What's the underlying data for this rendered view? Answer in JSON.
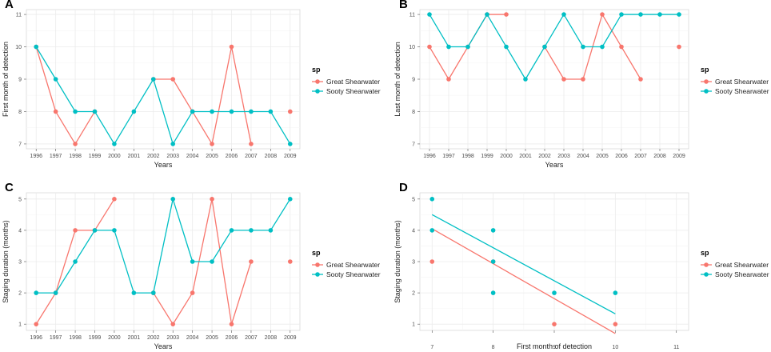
{
  "colors": {
    "great": "#F8766D",
    "sooty": "#00BFC4",
    "grid": "#ebebeb",
    "border": "#d9d9d9"
  },
  "legend": {
    "title": "sp",
    "entries": [
      "Great Shearwater",
      "Sooty Shearwater"
    ]
  },
  "chart_data": [
    {
      "panel": "A",
      "type": "line",
      "xlabel": "Years",
      "ylabel": "First month of detection",
      "categories": [
        "1996",
        "1997",
        "1998",
        "1999",
        "2000",
        "2001",
        "2002",
        "2003",
        "2004",
        "2005",
        "2006",
        "2007",
        "2008",
        "2009"
      ],
      "yticks": [
        7,
        8,
        9,
        10,
        11
      ],
      "ylim": [
        6.85,
        11.15
      ],
      "series": [
        {
          "name": "Great Shearwater",
          "values": [
            10,
            8,
            7,
            8,
            null,
            null,
            9,
            9,
            8,
            7,
            10,
            7,
            null,
            8
          ]
        },
        {
          "name": "Sooty Shearwater",
          "values": [
            10,
            9,
            8,
            8,
            7,
            8,
            9,
            7,
            8,
            8,
            8,
            8,
            8,
            7
          ]
        }
      ]
    },
    {
      "panel": "B",
      "type": "line",
      "xlabel": "Years",
      "ylabel": "Last month of detection",
      "categories": [
        "1996",
        "1997",
        "1998",
        "1999",
        "2000",
        "2001",
        "2002",
        "2003",
        "2004",
        "2005",
        "2006",
        "2007",
        "2008",
        "2009"
      ],
      "yticks": [
        7,
        8,
        9,
        10,
        11
      ],
      "ylim": [
        6.85,
        11.15
      ],
      "series": [
        {
          "name": "Great Shearwater",
          "values": [
            10,
            9,
            10,
            11,
            11,
            null,
            10,
            9,
            9,
            11,
            10,
            9,
            null,
            10
          ]
        },
        {
          "name": "Sooty Shearwater",
          "values": [
            11,
            10,
            10,
            11,
            10,
            9,
            10,
            11,
            10,
            10,
            11,
            11,
            11,
            11
          ]
        }
      ]
    },
    {
      "panel": "C",
      "type": "line",
      "xlabel": "Years",
      "ylabel": "Staging duration (months)",
      "categories": [
        "1996",
        "1997",
        "1998",
        "1999",
        "2000",
        "2001",
        "2002",
        "2003",
        "2004",
        "2005",
        "2006",
        "2007",
        "2008",
        "2009"
      ],
      "yticks": [
        1,
        2,
        3,
        4,
        5
      ],
      "ylim": [
        0.8,
        5.2
      ],
      "series": [
        {
          "name": "Great Shearwater",
          "values": [
            1,
            2,
            4,
            4,
            5,
            null,
            2,
            1,
            2,
            5,
            1,
            3,
            null,
            3
          ]
        },
        {
          "name": "Sooty Shearwater",
          "values": [
            2,
            2,
            3,
            4,
            4,
            2,
            2,
            5,
            3,
            3,
            4,
            4,
            4,
            5
          ]
        }
      ]
    },
    {
      "panel": "D",
      "type": "scatter",
      "xlabel": "First month of detection",
      "ylabel": "Staging duration (months)",
      "xticks": [
        7,
        8,
        9,
        10,
        11
      ],
      "xlim": [
        6.8,
        11.2
      ],
      "yticks": [
        1,
        2,
        3,
        4,
        5
      ],
      "ylim": [
        0.8,
        5.2
      ],
      "series": [
        {
          "name": "Great Shearwater",
          "points": [
            [
              7,
              3
            ],
            [
              8,
              3
            ],
            [
              9,
              1
            ],
            [
              10,
              1
            ]
          ],
          "fit": [
            [
              7,
              4.05
            ],
            [
              10,
              0.7
            ]
          ]
        },
        {
          "name": "Sooty Shearwater",
          "points": [
            [
              7,
              5
            ],
            [
              7,
              4
            ],
            [
              8,
              4
            ],
            [
              8,
              3
            ],
            [
              8,
              2
            ],
            [
              9,
              2
            ],
            [
              10,
              2
            ]
          ],
          "fit": [
            [
              7,
              4.5
            ],
            [
              10,
              1.33
            ]
          ]
        }
      ]
    }
  ]
}
